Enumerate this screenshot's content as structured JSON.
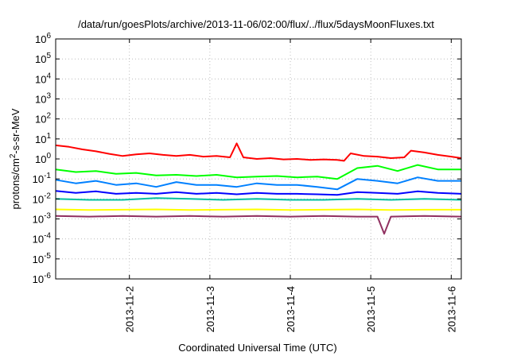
{
  "chart_data": {
    "type": "line",
    "title": "/data/run/goesPlots/archive/2013-11-06/02:00/flux/../flux/5daysMoonFluxes.txt",
    "xlabel": "Coordinated Universal Time (UTC)",
    "ylabel": "protons/cm²-s-sr-MeV",
    "y_scale": "log",
    "ylim": [
      1e-06,
      1000000.0
    ],
    "xlim": [
      "2013-11-01T02:00",
      "2013-11-06T03:00"
    ],
    "y_ticks": [
      {
        "base": "10",
        "exp": "-6",
        "value": 1e-06
      },
      {
        "base": "10",
        "exp": "-5",
        "value": 1e-05
      },
      {
        "base": "10",
        "exp": "-4",
        "value": 0.0001
      },
      {
        "base": "10",
        "exp": "-3",
        "value": 0.001
      },
      {
        "base": "10",
        "exp": "-2",
        "value": 0.01
      },
      {
        "base": "10",
        "exp": "-1",
        "value": 0.1
      },
      {
        "base": "10",
        "exp": "0",
        "value": 1
      },
      {
        "base": "10",
        "exp": "1",
        "value": 10
      },
      {
        "base": "10",
        "exp": "2",
        "value": 100
      },
      {
        "base": "10",
        "exp": "3",
        "value": 1000
      },
      {
        "base": "10",
        "exp": "4",
        "value": 10000
      },
      {
        "base": "10",
        "exp": "5",
        "value": 100000
      },
      {
        "base": "10",
        "exp": "6",
        "value": 1000000
      }
    ],
    "x_ticks": [
      "2013-11-2",
      "2013-11-3",
      "2013-11-4",
      "2013-11-5",
      "2013-11-6"
    ],
    "x_tick_dates": [
      "2013-11-02T00:00",
      "2013-11-03T00:00",
      "2013-11-04T00:00",
      "2013-11-05T00:00",
      "2013-11-06T00:00"
    ],
    "grid": true,
    "series": [
      {
        "color": "#ff0000",
        "x": [
          "2013-11-01T02:00",
          "2013-11-01T06:00",
          "2013-11-01T10:00",
          "2013-11-01T14:00",
          "2013-11-01T18:00",
          "2013-11-01T22:00",
          "2013-11-02T02:00",
          "2013-11-02T06:00",
          "2013-11-02T10:00",
          "2013-11-02T14:00",
          "2013-11-02T18:00",
          "2013-11-02T22:00",
          "2013-11-03T02:00",
          "2013-11-03T06:00",
          "2013-11-03T08:00",
          "2013-11-03T10:00",
          "2013-11-03T14:00",
          "2013-11-03T18:00",
          "2013-11-03T22:00",
          "2013-11-04T02:00",
          "2013-11-04T06:00",
          "2013-11-04T10:00",
          "2013-11-04T14:00",
          "2013-11-04T16:00",
          "2013-11-04T18:00",
          "2013-11-04T22:00",
          "2013-11-05T02:00",
          "2013-11-05T06:00",
          "2013-11-05T10:00",
          "2013-11-05T12:00",
          "2013-11-05T16:00",
          "2013-11-05T20:00",
          "2013-11-06T00:00",
          "2013-11-06T03:00"
        ],
        "values": [
          4.8,
          4.0,
          3.0,
          2.4,
          1.8,
          1.4,
          1.7,
          1.9,
          1.6,
          1.4,
          1.6,
          1.3,
          1.4,
          1.2,
          6.0,
          1.2,
          1.0,
          1.1,
          0.95,
          1.0,
          0.9,
          0.95,
          0.9,
          0.8,
          1.9,
          1.4,
          1.3,
          1.1,
          1.2,
          2.6,
          2.1,
          1.6,
          1.3,
          1.1
        ]
      },
      {
        "color": "#00ff00",
        "x": [
          "2013-11-01T02:00",
          "2013-11-01T08:00",
          "2013-11-01T14:00",
          "2013-11-01T20:00",
          "2013-11-02T02:00",
          "2013-11-02T08:00",
          "2013-11-02T14:00",
          "2013-11-02T20:00",
          "2013-11-03T02:00",
          "2013-11-03T08:00",
          "2013-11-03T14:00",
          "2013-11-03T20:00",
          "2013-11-04T02:00",
          "2013-11-04T08:00",
          "2013-11-04T14:00",
          "2013-11-04T20:00",
          "2013-11-05T02:00",
          "2013-11-05T08:00",
          "2013-11-05T14:00",
          "2013-11-05T20:00",
          "2013-11-06T03:00"
        ],
        "values": [
          0.3,
          0.22,
          0.25,
          0.18,
          0.2,
          0.15,
          0.16,
          0.14,
          0.16,
          0.12,
          0.13,
          0.14,
          0.12,
          0.13,
          0.1,
          0.35,
          0.45,
          0.25,
          0.5,
          0.3,
          0.3
        ]
      },
      {
        "color": "#0080ff",
        "x": [
          "2013-11-01T02:00",
          "2013-11-01T08:00",
          "2013-11-01T14:00",
          "2013-11-01T20:00",
          "2013-11-02T02:00",
          "2013-11-02T08:00",
          "2013-11-02T14:00",
          "2013-11-02T20:00",
          "2013-11-03T02:00",
          "2013-11-03T08:00",
          "2013-11-03T14:00",
          "2013-11-03T20:00",
          "2013-11-04T02:00",
          "2013-11-04T08:00",
          "2013-11-04T14:00",
          "2013-11-04T20:00",
          "2013-11-05T02:00",
          "2013-11-05T08:00",
          "2013-11-05T14:00",
          "2013-11-05T20:00",
          "2013-11-06T03:00"
        ],
        "values": [
          0.09,
          0.06,
          0.08,
          0.05,
          0.06,
          0.04,
          0.07,
          0.05,
          0.05,
          0.04,
          0.06,
          0.05,
          0.05,
          0.04,
          0.03,
          0.1,
          0.08,
          0.06,
          0.12,
          0.08,
          0.08
        ]
      },
      {
        "color": "#0000ff",
        "x": [
          "2013-11-01T02:00",
          "2013-11-01T08:00",
          "2013-11-01T14:00",
          "2013-11-01T20:00",
          "2013-11-02T02:00",
          "2013-11-02T08:00",
          "2013-11-02T14:00",
          "2013-11-02T20:00",
          "2013-11-03T02:00",
          "2013-11-03T08:00",
          "2013-11-03T14:00",
          "2013-11-03T20:00",
          "2013-11-04T02:00",
          "2013-11-04T08:00",
          "2013-11-04T14:00",
          "2013-11-04T20:00",
          "2013-11-05T02:00",
          "2013-11-05T08:00",
          "2013-11-05T14:00",
          "2013-11-05T20:00",
          "2013-11-06T03:00"
        ],
        "values": [
          0.025,
          0.02,
          0.024,
          0.018,
          0.02,
          0.018,
          0.022,
          0.018,
          0.02,
          0.017,
          0.02,
          0.018,
          0.018,
          0.017,
          0.016,
          0.022,
          0.02,
          0.018,
          0.024,
          0.02,
          0.018
        ]
      },
      {
        "color": "#00c0a0",
        "x": [
          "2013-11-01T02:00",
          "2013-11-01T12:00",
          "2013-11-01T22:00",
          "2013-11-02T08:00",
          "2013-11-02T18:00",
          "2013-11-03T04:00",
          "2013-11-03T14:00",
          "2013-11-04T00:00",
          "2013-11-04T10:00",
          "2013-11-04T20:00",
          "2013-11-05T06:00",
          "2013-11-05T16:00",
          "2013-11-06T03:00"
        ],
        "values": [
          0.01,
          0.009,
          0.009,
          0.011,
          0.01,
          0.009,
          0.01,
          0.009,
          0.009,
          0.01,
          0.009,
          0.01,
          0.009
        ]
      },
      {
        "color": "#ffff00",
        "x": [
          "2013-11-01T02:00",
          "2013-11-01T12:00",
          "2013-11-01T22:00",
          "2013-11-02T08:00",
          "2013-11-02T18:00",
          "2013-11-03T04:00",
          "2013-11-03T14:00",
          "2013-11-04T00:00",
          "2013-11-04T10:00",
          "2013-11-04T20:00",
          "2013-11-05T06:00",
          "2013-11-05T16:00",
          "2013-11-06T03:00"
        ],
        "values": [
          0.003,
          0.0028,
          0.0029,
          0.003,
          0.0028,
          0.0029,
          0.003,
          0.0028,
          0.0029,
          0.003,
          0.0028,
          0.0029,
          0.0029
        ]
      },
      {
        "color": "#903060",
        "x": [
          "2013-11-01T02:00",
          "2013-11-01T12:00",
          "2013-11-01T22:00",
          "2013-11-02T08:00",
          "2013-11-02T18:00",
          "2013-11-03T04:00",
          "2013-11-03T14:00",
          "2013-11-04T00:00",
          "2013-11-04T10:00",
          "2013-11-04T20:00",
          "2013-11-05T02:00",
          "2013-11-05T04:00",
          "2013-11-05T06:00",
          "2013-11-05T16:00",
          "2013-11-06T03:00"
        ],
        "values": [
          0.0014,
          0.0013,
          0.0014,
          0.0013,
          0.0014,
          0.0013,
          0.0014,
          0.0013,
          0.0014,
          0.0013,
          0.0013,
          0.00018,
          0.0013,
          0.0014,
          0.0013
        ]
      }
    ]
  }
}
